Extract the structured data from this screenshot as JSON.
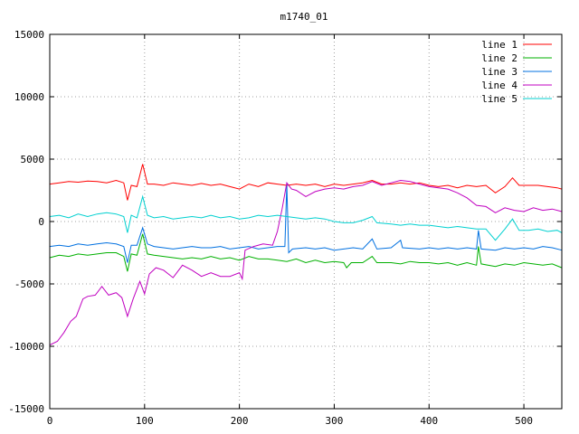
{
  "chart_data": {
    "type": "line",
    "title": "m1740_01",
    "xlim": [
      0,
      540
    ],
    "ylim": [
      -15000,
      15000
    ],
    "xticks": [
      0,
      100,
      200,
      300,
      400,
      500
    ],
    "yticks": [
      -15000,
      -10000,
      -5000,
      0,
      5000,
      10000,
      15000
    ],
    "grid": true,
    "legend_position": "top-right",
    "series": [
      {
        "name": "line 1",
        "color": "#ff0000",
        "points": [
          [
            0,
            3000
          ],
          [
            10,
            3100
          ],
          [
            20,
            3200
          ],
          [
            30,
            3150
          ],
          [
            40,
            3250
          ],
          [
            50,
            3200
          ],
          [
            60,
            3100
          ],
          [
            70,
            3300
          ],
          [
            78,
            3100
          ],
          [
            82,
            1700
          ],
          [
            86,
            2900
          ],
          [
            92,
            2800
          ],
          [
            98,
            4600
          ],
          [
            103,
            3000
          ],
          [
            110,
            3000
          ],
          [
            120,
            2900
          ],
          [
            130,
            3100
          ],
          [
            140,
            3000
          ],
          [
            150,
            2900
          ],
          [
            160,
            3050
          ],
          [
            170,
            2900
          ],
          [
            180,
            3000
          ],
          [
            190,
            2800
          ],
          [
            200,
            2600
          ],
          [
            210,
            3000
          ],
          [
            220,
            2800
          ],
          [
            230,
            3100
          ],
          [
            240,
            3000
          ],
          [
            250,
            2900
          ],
          [
            260,
            3000
          ],
          [
            270,
            2900
          ],
          [
            280,
            3000
          ],
          [
            290,
            2800
          ],
          [
            300,
            3000
          ],
          [
            310,
            2900
          ],
          [
            320,
            3000
          ],
          [
            330,
            3100
          ],
          [
            340,
            3300
          ],
          [
            350,
            3000
          ],
          [
            360,
            3000
          ],
          [
            370,
            3100
          ],
          [
            380,
            3000
          ],
          [
            390,
            3100
          ],
          [
            400,
            2900
          ],
          [
            410,
            2800
          ],
          [
            420,
            2900
          ],
          [
            430,
            2700
          ],
          [
            440,
            2900
          ],
          [
            450,
            2800
          ],
          [
            460,
            2900
          ],
          [
            470,
            2300
          ],
          [
            480,
            2800
          ],
          [
            488,
            3500
          ],
          [
            495,
            2900
          ],
          [
            505,
            2900
          ],
          [
            515,
            2900
          ],
          [
            525,
            2800
          ],
          [
            535,
            2700
          ],
          [
            540,
            2600
          ]
        ]
      },
      {
        "name": "line 2",
        "color": "#00b000",
        "points": [
          [
            0,
            -2900
          ],
          [
            10,
            -2700
          ],
          [
            20,
            -2800
          ],
          [
            30,
            -2600
          ],
          [
            40,
            -2700
          ],
          [
            50,
            -2600
          ],
          [
            60,
            -2500
          ],
          [
            70,
            -2500
          ],
          [
            78,
            -2800
          ],
          [
            82,
            -4000
          ],
          [
            86,
            -2600
          ],
          [
            92,
            -2700
          ],
          [
            98,
            -1000
          ],
          [
            103,
            -2600
          ],
          [
            110,
            -2700
          ],
          [
            120,
            -2800
          ],
          [
            130,
            -2900
          ],
          [
            140,
            -3000
          ],
          [
            150,
            -2900
          ],
          [
            160,
            -3000
          ],
          [
            170,
            -2800
          ],
          [
            180,
            -3000
          ],
          [
            190,
            -2900
          ],
          [
            200,
            -3100
          ],
          [
            210,
            -2800
          ],
          [
            220,
            -3000
          ],
          [
            230,
            -3000
          ],
          [
            240,
            -3100
          ],
          [
            250,
            -3200
          ],
          [
            260,
            -3000
          ],
          [
            270,
            -3300
          ],
          [
            280,
            -3100
          ],
          [
            290,
            -3300
          ],
          [
            300,
            -3200
          ],
          [
            310,
            -3300
          ],
          [
            313,
            -3700
          ],
          [
            318,
            -3300
          ],
          [
            330,
            -3300
          ],
          [
            340,
            -2800
          ],
          [
            345,
            -3300
          ],
          [
            360,
            -3300
          ],
          [
            370,
            -3400
          ],
          [
            380,
            -3200
          ],
          [
            390,
            -3300
          ],
          [
            400,
            -3300
          ],
          [
            410,
            -3400
          ],
          [
            420,
            -3300
          ],
          [
            430,
            -3500
          ],
          [
            440,
            -3300
          ],
          [
            450,
            -3500
          ],
          [
            452,
            -2000
          ],
          [
            455,
            -3400
          ],
          [
            470,
            -3600
          ],
          [
            480,
            -3400
          ],
          [
            490,
            -3500
          ],
          [
            500,
            -3300
          ],
          [
            510,
            -3400
          ],
          [
            520,
            -3500
          ],
          [
            530,
            -3400
          ],
          [
            540,
            -3700
          ]
        ]
      },
      {
        "name": "line 3",
        "color": "#0070e0",
        "points": [
          [
            0,
            -2000
          ],
          [
            10,
            -1900
          ],
          [
            20,
            -2000
          ],
          [
            30,
            -1800
          ],
          [
            40,
            -1900
          ],
          [
            50,
            -1800
          ],
          [
            60,
            -1700
          ],
          [
            70,
            -1800
          ],
          [
            78,
            -2000
          ],
          [
            82,
            -3300
          ],
          [
            86,
            -1900
          ],
          [
            92,
            -1900
          ],
          [
            98,
            -500
          ],
          [
            103,
            -1800
          ],
          [
            110,
            -2000
          ],
          [
            120,
            -2100
          ],
          [
            130,
            -2200
          ],
          [
            140,
            -2100
          ],
          [
            150,
            -2000
          ],
          [
            160,
            -2100
          ],
          [
            170,
            -2100
          ],
          [
            180,
            -2000
          ],
          [
            190,
            -2200
          ],
          [
            200,
            -2100
          ],
          [
            210,
            -2000
          ],
          [
            220,
            -2200
          ],
          [
            230,
            -2100
          ],
          [
            240,
            -2000
          ],
          [
            248,
            -2000
          ],
          [
            250,
            3000
          ],
          [
            252,
            -2500
          ],
          [
            256,
            -2200
          ],
          [
            270,
            -2100
          ],
          [
            280,
            -2200
          ],
          [
            290,
            -2100
          ],
          [
            300,
            -2300
          ],
          [
            310,
            -2200
          ],
          [
            320,
            -2100
          ],
          [
            330,
            -2200
          ],
          [
            340,
            -1400
          ],
          [
            345,
            -2200
          ],
          [
            360,
            -2100
          ],
          [
            370,
            -1500
          ],
          [
            372,
            -2100
          ],
          [
            390,
            -2200
          ],
          [
            400,
            -2100
          ],
          [
            410,
            -2200
          ],
          [
            420,
            -2100
          ],
          [
            430,
            -2200
          ],
          [
            440,
            -2100
          ],
          [
            450,
            -2200
          ],
          [
            452,
            -700
          ],
          [
            455,
            -2200
          ],
          [
            470,
            -2300
          ],
          [
            480,
            -2100
          ],
          [
            490,
            -2200
          ],
          [
            500,
            -2100
          ],
          [
            510,
            -2200
          ],
          [
            520,
            -2000
          ],
          [
            530,
            -2100
          ],
          [
            540,
            -2300
          ]
        ]
      },
      {
        "name": "line 4",
        "color": "#c000c0",
        "points": [
          [
            0,
            -9900
          ],
          [
            8,
            -9600
          ],
          [
            15,
            -8900
          ],
          [
            22,
            -8000
          ],
          [
            28,
            -7600
          ],
          [
            35,
            -6200
          ],
          [
            40,
            -6000
          ],
          [
            48,
            -5900
          ],
          [
            55,
            -5200
          ],
          [
            62,
            -5900
          ],
          [
            70,
            -5700
          ],
          [
            76,
            -6100
          ],
          [
            82,
            -7600
          ],
          [
            88,
            -6200
          ],
          [
            95,
            -4800
          ],
          [
            100,
            -5800
          ],
          [
            105,
            -4200
          ],
          [
            112,
            -3700
          ],
          [
            120,
            -3900
          ],
          [
            130,
            -4500
          ],
          [
            140,
            -3500
          ],
          [
            150,
            -3900
          ],
          [
            160,
            -4400
          ],
          [
            170,
            -4100
          ],
          [
            180,
            -4400
          ],
          [
            190,
            -4400
          ],
          [
            200,
            -4100
          ],
          [
            203,
            -4600
          ],
          [
            206,
            -2300
          ],
          [
            215,
            -2000
          ],
          [
            225,
            -1800
          ],
          [
            235,
            -1900
          ],
          [
            240,
            -800
          ],
          [
            245,
            1000
          ],
          [
            250,
            3100
          ],
          [
            255,
            2600
          ],
          [
            260,
            2500
          ],
          [
            270,
            2000
          ],
          [
            280,
            2400
          ],
          [
            290,
            2600
          ],
          [
            300,
            2700
          ],
          [
            310,
            2600
          ],
          [
            320,
            2800
          ],
          [
            330,
            2900
          ],
          [
            340,
            3200
          ],
          [
            350,
            2900
          ],
          [
            360,
            3100
          ],
          [
            370,
            3300
          ],
          [
            380,
            3200
          ],
          [
            390,
            3000
          ],
          [
            400,
            2800
          ],
          [
            410,
            2700
          ],
          [
            420,
            2600
          ],
          [
            430,
            2300
          ],
          [
            440,
            1900
          ],
          [
            450,
            1300
          ],
          [
            460,
            1200
          ],
          [
            470,
            700
          ],
          [
            480,
            1100
          ],
          [
            490,
            900
          ],
          [
            500,
            800
          ],
          [
            510,
            1100
          ],
          [
            520,
            900
          ],
          [
            530,
            1000
          ],
          [
            540,
            800
          ]
        ]
      },
      {
        "name": "line 5",
        "color": "#00d0d0",
        "points": [
          [
            0,
            400
          ],
          [
            10,
            500
          ],
          [
            20,
            300
          ],
          [
            30,
            600
          ],
          [
            40,
            400
          ],
          [
            50,
            600
          ],
          [
            60,
            700
          ],
          [
            70,
            600
          ],
          [
            78,
            400
          ],
          [
            82,
            -900
          ],
          [
            86,
            500
          ],
          [
            92,
            300
          ],
          [
            98,
            2000
          ],
          [
            103,
            500
          ],
          [
            110,
            300
          ],
          [
            120,
            400
          ],
          [
            130,
            200
          ],
          [
            140,
            300
          ],
          [
            150,
            400
          ],
          [
            160,
            300
          ],
          [
            170,
            500
          ],
          [
            180,
            300
          ],
          [
            190,
            400
          ],
          [
            200,
            200
          ],
          [
            210,
            300
          ],
          [
            220,
            500
          ],
          [
            230,
            400
          ],
          [
            240,
            500
          ],
          [
            250,
            400
          ],
          [
            260,
            300
          ],
          [
            270,
            200
          ],
          [
            280,
            300
          ],
          [
            290,
            200
          ],
          [
            300,
            0
          ],
          [
            310,
            -100
          ],
          [
            320,
            -100
          ],
          [
            330,
            100
          ],
          [
            340,
            400
          ],
          [
            345,
            -100
          ],
          [
            360,
            -200
          ],
          [
            370,
            -300
          ],
          [
            380,
            -200
          ],
          [
            390,
            -300
          ],
          [
            400,
            -300
          ],
          [
            410,
            -400
          ],
          [
            420,
            -500
          ],
          [
            430,
            -400
          ],
          [
            440,
            -500
          ],
          [
            450,
            -600
          ],
          [
            460,
            -600
          ],
          [
            470,
            -1500
          ],
          [
            480,
            -600
          ],
          [
            488,
            200
          ],
          [
            495,
            -700
          ],
          [
            505,
            -700
          ],
          [
            515,
            -600
          ],
          [
            525,
            -800
          ],
          [
            535,
            -700
          ],
          [
            540,
            -900
          ]
        ]
      }
    ]
  }
}
